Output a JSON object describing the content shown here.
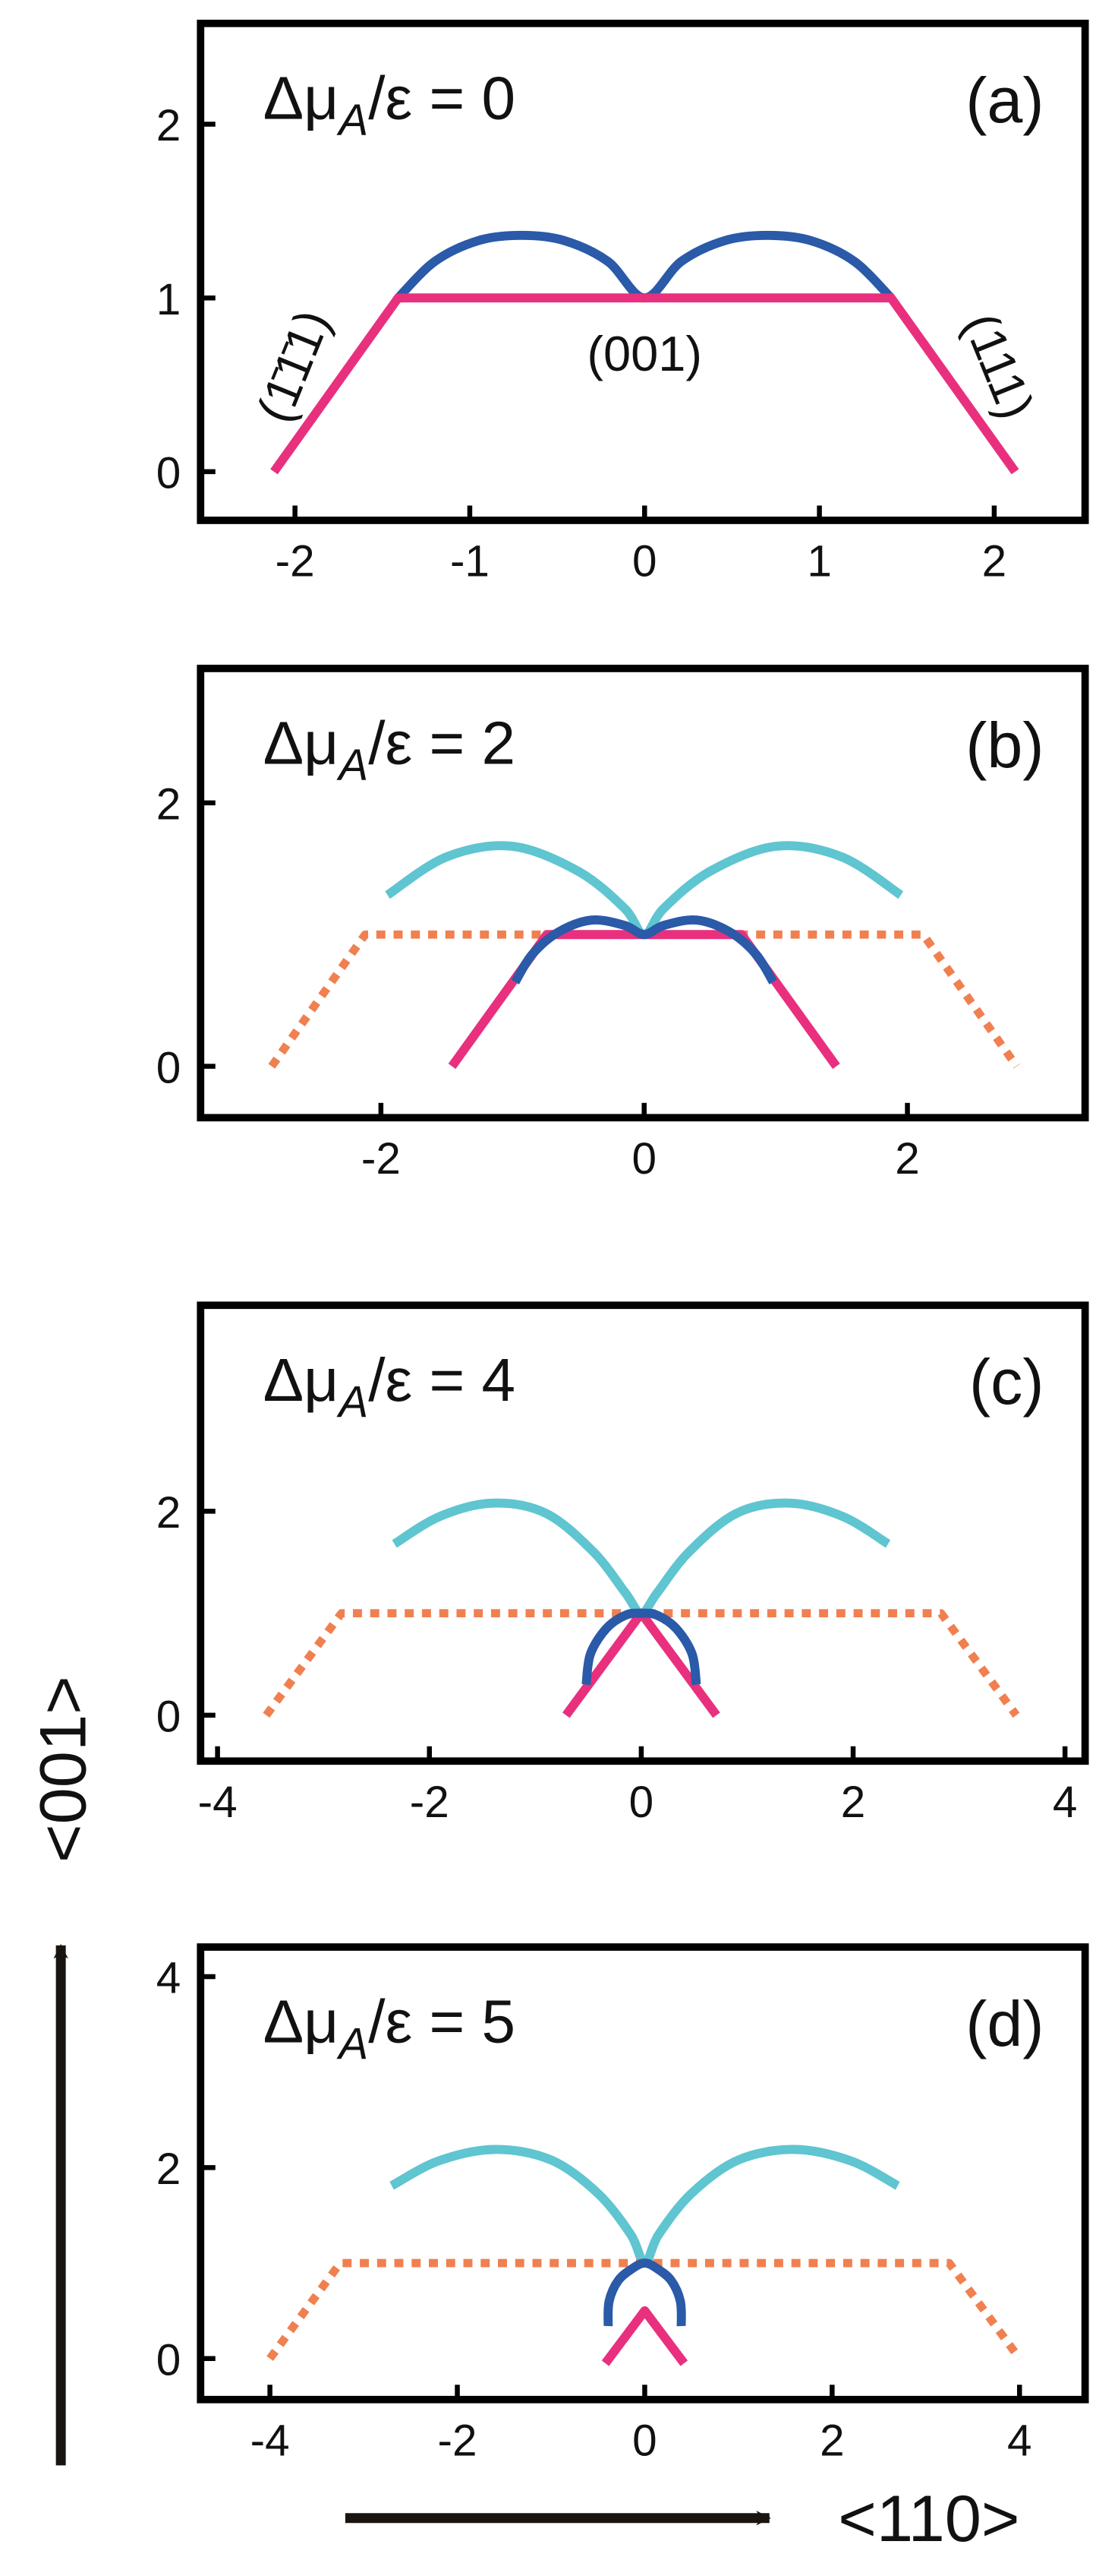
{
  "figure": {
    "y_axis_label": "<001>",
    "x_axis_label": "<110>"
  },
  "chart_data": [
    {
      "type": "line",
      "title": [
        "Δμ",
        "A",
        "/ε = 0"
      ],
      "panel_label": "(a)",
      "annotations": [
        "(1̄1̄1)",
        "(001)",
        "(111)"
      ],
      "xlim": [
        -2.54,
        2.52
      ],
      "ylim": [
        -0.28,
        2.58
      ],
      "xticks": [
        -2,
        -1,
        0,
        1,
        2
      ],
      "yticks": [
        0,
        1,
        2
      ],
      "series": [
        {
          "color": "#2a5aa8",
          "curve": "smooth",
          "x": [
            -1.41,
            -1.2,
            -0.95,
            -0.705,
            -0.46,
            -0.21,
            0,
            0.21,
            0.46,
            0.705,
            0.95,
            1.2,
            1.41
          ],
          "values": [
            1,
            1.21,
            1.33,
            1.36,
            1.33,
            1.21,
            1,
            1.21,
            1.33,
            1.36,
            1.33,
            1.21,
            1
          ]
        },
        {
          "color": "#e8307e",
          "curve": "straight",
          "x": [
            -2.12,
            -1.41,
            1.41,
            2.12
          ],
          "values": [
            0,
            1,
            1,
            0
          ]
        }
      ]
    },
    {
      "type": "line",
      "title": [
        "Δμ",
        "A",
        "/ε = 2"
      ],
      "panel_label": "(b)",
      "xlim": [
        -3.37,
        3.35
      ],
      "ylim": [
        -0.39,
        3.02
      ],
      "xticks": [
        -2,
        0,
        2
      ],
      "yticks": [
        0,
        2
      ],
      "series": [
        {
          "color": "#5fc5d0",
          "curve": "smooth",
          "x": [
            -1.95,
            -1.5,
            -1.0,
            -0.5,
            -0.15,
            0,
            0.15,
            0.5,
            1.0,
            1.5,
            1.95
          ],
          "values": [
            1.3,
            1.59,
            1.67,
            1.48,
            1.2,
            1.0,
            1.2,
            1.48,
            1.67,
            1.59,
            1.3
          ]
        },
        {
          "color": "#f08050",
          "curve": "dotted",
          "x": [
            -2.83,
            -2.12,
            2.12,
            2.83
          ],
          "values": [
            0,
            1,
            1,
            0
          ]
        },
        {
          "color": "#e8307e",
          "curve": "straight",
          "x": [
            -1.46,
            -0.74,
            0.74,
            1.46
          ],
          "values": [
            0,
            1,
            1,
            0
          ]
        },
        {
          "color": "#2a5aa8",
          "curve": "smooth",
          "x": [
            -0.98,
            -0.85,
            -0.65,
            -0.4,
            -0.15,
            0,
            0.15,
            0.4,
            0.65,
            0.85,
            0.98
          ],
          "values": [
            0.64,
            0.85,
            1.02,
            1.11,
            1.07,
            1.0,
            1.07,
            1.11,
            1.02,
            0.85,
            0.64
          ]
        }
      ]
    },
    {
      "type": "line",
      "title": [
        "Δμ",
        "A",
        "/ε = 4"
      ],
      "panel_label": "(c)",
      "xlim": [
        -4.16,
        4.19
      ],
      "ylim": [
        -0.45,
        4.02
      ],
      "xticks": [
        -4,
        -2,
        0,
        2,
        4
      ],
      "yticks": [
        0,
        2
      ],
      "series": [
        {
          "color": "#5fc5d0",
          "curve": "smooth",
          "x": [
            -2.33,
            -1.9,
            -1.4,
            -0.9,
            -0.45,
            -0.15,
            0,
            0.15,
            0.45,
            0.9,
            1.4,
            1.9,
            2.33
          ],
          "values": [
            1.68,
            1.95,
            2.08,
            1.98,
            1.6,
            1.2,
            1.0,
            1.2,
            1.6,
            1.98,
            2.08,
            1.95,
            1.68
          ]
        },
        {
          "color": "#f08050",
          "curve": "dotted",
          "x": [
            -3.54,
            -2.83,
            2.83,
            3.54
          ],
          "values": [
            0,
            1,
            1,
            0
          ]
        },
        {
          "color": "#e8307e",
          "curve": "straight",
          "x": [
            -0.71,
            0,
            0.71
          ],
          "values": [
            0,
            1,
            0
          ]
        },
        {
          "color": "#2a5aa8",
          "curve": "smooth",
          "x": [
            -0.52,
            -0.48,
            -0.33,
            -0.15,
            0,
            0.15,
            0.33,
            0.48,
            0.52
          ],
          "values": [
            0.3,
            0.6,
            0.85,
            0.98,
            1.0,
            0.98,
            0.85,
            0.6,
            0.3
          ]
        }
      ]
    },
    {
      "type": "line",
      "title": [
        "Δμ",
        "A",
        "/ε = 5"
      ],
      "panel_label": "(d)",
      "xlim": [
        -4.74,
        4.7
      ],
      "ylim": [
        -0.43,
        4.31
      ],
      "xticks": [
        -4,
        -2,
        0,
        2,
        4
      ],
      "yticks": [
        0,
        2,
        4
      ],
      "series": [
        {
          "color": "#5fc5d0",
          "curve": "smooth",
          "x": [
            -2.7,
            -2.2,
            -1.6,
            -1.0,
            -0.5,
            -0.15,
            0,
            0.15,
            0.5,
            1.0,
            1.6,
            2.2,
            2.7
          ],
          "values": [
            1.81,
            2.07,
            2.19,
            2.08,
            1.73,
            1.3,
            1.0,
            1.3,
            1.73,
            2.08,
            2.19,
            2.07,
            1.81
          ]
        },
        {
          "color": "#f08050",
          "curve": "dotted",
          "x": [
            -4.0,
            -3.25,
            3.25,
            4.0
          ],
          "values": [
            0,
            1,
            1,
            0
          ]
        },
        {
          "color": "#2a5aa8",
          "curve": "smooth",
          "x": [
            -0.39,
            -0.38,
            -0.28,
            -0.12,
            0,
            0.12,
            0.28,
            0.38,
            0.39
          ],
          "values": [
            0.34,
            0.6,
            0.82,
            0.95,
            1.0,
            0.95,
            0.82,
            0.6,
            0.34
          ]
        },
        {
          "color": "#e8307e",
          "curve": "straight",
          "x": [
            -0.42,
            0,
            0.42
          ],
          "values": [
            -0.05,
            0.5,
            -0.05
          ]
        }
      ]
    }
  ]
}
